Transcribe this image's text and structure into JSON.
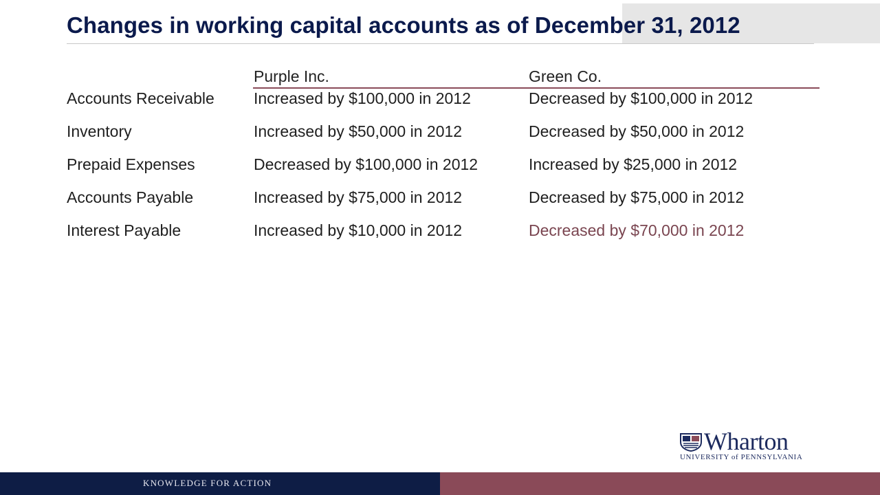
{
  "slide": {
    "title": "Changes in working capital accounts as of December 31, 2012"
  },
  "table": {
    "headers": {
      "purple": "Purple Inc.",
      "green": "Green Co."
    },
    "rows": [
      {
        "label": "Accounts Receivable",
        "purple": "Increased by $100,000 in 2012",
        "green": "Decreased by $100,000 in 2012"
      },
      {
        "label": "Inventory",
        "purple": "Increased by $50,000 in 2012",
        "green": "Decreased by $50,000 in 2012"
      },
      {
        "label": "Prepaid Expenses",
        "purple": "Decreased by $100,000 in 2012",
        "green": "Increased by $25,000 in 2012"
      },
      {
        "label": "Accounts Payable",
        "purple": "Increased by $75,000 in 2012",
        "green": "Decreased by $75,000 in 2012"
      },
      {
        "label": "Interest Payable",
        "purple": "Increased by $10,000 in 2012",
        "green": "Decreased by $70,000 in 2012"
      }
    ]
  },
  "branding": {
    "logo_name": "Wharton",
    "logo_subtitle": "UNIVERSITY of PENNSYLVANIA",
    "footer_tagline": "KNOWLEDGE FOR ACTION"
  },
  "colors": {
    "title": "#0b1a4c",
    "accent": "#8a4a58",
    "footer_navy": "#0e1d45"
  }
}
